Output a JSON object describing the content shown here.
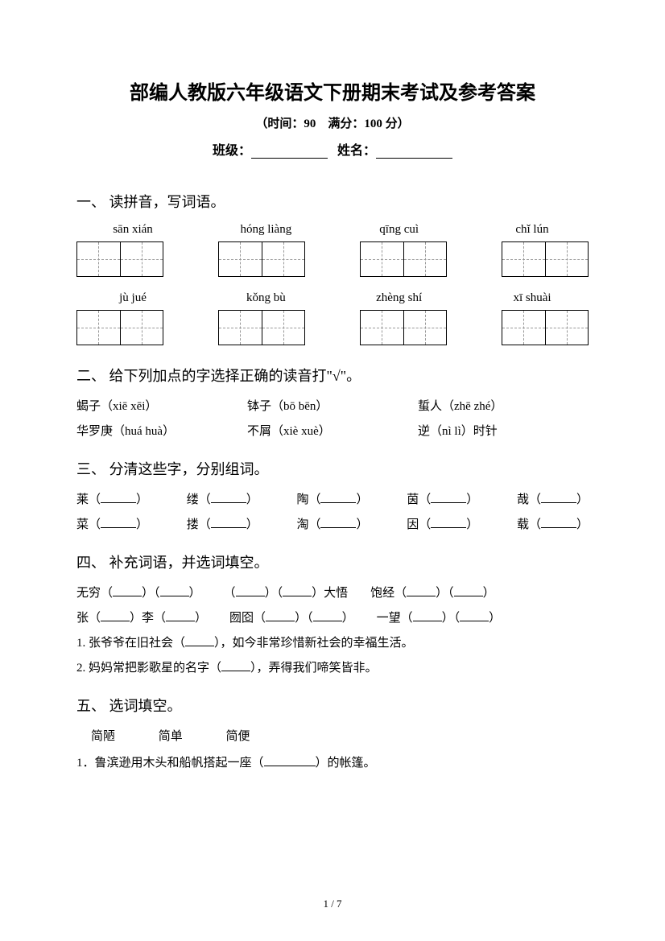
{
  "title": "部编人教版六年级语文下册期末考试及参考答案",
  "subtitle": "（时间：90　满分：100 分）",
  "info": {
    "class_label": "班级：",
    "name_label": "姓名："
  },
  "sections": {
    "s1": {
      "header": "一、 读拼音，写词语。",
      "row1": [
        "sān xián",
        "hóng liàng",
        "qīng cuì",
        "chǐ lún"
      ],
      "row2": [
        "jù jué",
        "kǒng bù",
        "zhèng shí",
        "xī shuài"
      ]
    },
    "s2": {
      "header": "二、 给下列加点的字选择正确的读音打\"√\"。",
      "r1a": "蝎子（xiē  xēi）",
      "r1b": "钵子（bō bēn）",
      "r1c": "蜇人（zhē zhé）",
      "r2a": "华罗庚（huá huà）",
      "r2b": "不屑（xiè  xuè）",
      "r2c": "逆（nì  lì）时针"
    },
    "s3": {
      "header": "三、 分清这些字，分别组词。",
      "r1": [
        "莱（",
        "缕（",
        "陶（",
        "茵（",
        "哉（"
      ],
      "r2": [
        "菜（",
        "搂（",
        "淘（",
        "因（",
        "载（"
      ]
    },
    "s4": {
      "header": "四、 补充词语，并选词填空。",
      "r1": {
        "a": "无穷（",
        "b": "）（",
        "c": "）",
        "d": "（",
        "e": "）（",
        "f": "）大悟",
        "g": "饱经（",
        "h": "）（",
        "i": "）"
      },
      "r2": {
        "a": "张（",
        "b": "）李（",
        "c": "）",
        "d": "囫囵（",
        "e": "）（",
        "f": "）",
        "g": "一望（",
        "h": "）（",
        "i": "）"
      },
      "sent1a": "1. 张爷爷在旧社会（",
      "sent1b": "），如今非常珍惜新社会的幸福生活。",
      "sent2a": "2. 妈妈常把影歌星的名字（",
      "sent2b": "），弄得我们啼笑皆非。"
    },
    "s5": {
      "header": "五、 选词填空。",
      "w1": "简陋",
      "w2": "简单",
      "w3": "简便",
      "sent1a": "1．鲁滨逊用木头和船帆搭起一座（",
      "sent1b": "）的帐篷。"
    }
  },
  "page": "1 / 7"
}
